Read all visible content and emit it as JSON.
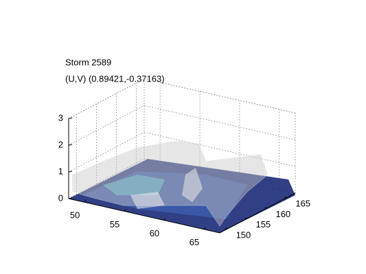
{
  "chart_data": {
    "type": "surface3d",
    "title": "Storm 2589",
    "subtitle": "(U,V) (0.89421,-0.37163)",
    "xlim": [
      48,
      67
    ],
    "xticks": [
      50,
      55,
      60,
      65
    ],
    "ylim": [
      148,
      167
    ],
    "yticks": [
      150,
      155,
      160,
      165
    ],
    "zlim": [
      0,
      3
    ],
    "zticks": [
      0,
      1,
      2,
      3
    ],
    "grid": true
  }
}
